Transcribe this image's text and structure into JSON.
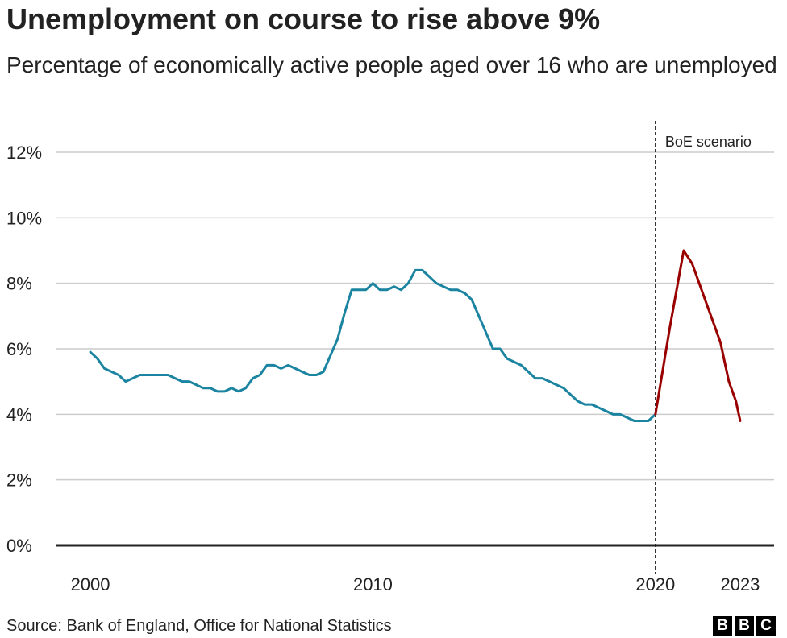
{
  "chart_data": {
    "type": "line",
    "title": "Unemployment on course to rise above 9%",
    "subtitle": "Percentage of economically active people aged over 16 who are unemployed",
    "source": "Source: Bank of England, Office for National Statistics",
    "logo": [
      "B",
      "B",
      "C"
    ],
    "xlim": [
      1998.8,
      2024.2
    ],
    "xticks": [
      2000,
      2010,
      2020,
      2023
    ],
    "ylim": [
      0,
      12
    ],
    "yticks": [
      {
        "value": 0,
        "label": "0%"
      },
      {
        "value": 2,
        "label": "2%"
      },
      {
        "value": 4,
        "label": "4%"
      },
      {
        "value": 6,
        "label": "6%"
      },
      {
        "value": 8,
        "label": "8%"
      },
      {
        "value": 10,
        "label": "10%"
      },
      {
        "value": 12,
        "label": "12%"
      }
    ],
    "grid": true,
    "annotation": {
      "text": "BoE scenario",
      "x": 2020
    },
    "series": [
      {
        "color": "#1b84a0",
        "x": [
          2000,
          2000.25,
          2000.5,
          2000.75,
          2001,
          2001.25,
          2001.5,
          2001.75,
          2002,
          2002.25,
          2002.5,
          2002.75,
          2003,
          2003.25,
          2003.5,
          2003.75,
          2004,
          2004.25,
          2004.5,
          2004.75,
          2005,
          2005.25,
          2005.5,
          2005.75,
          2006,
          2006.25,
          2006.5,
          2006.75,
          2007,
          2007.25,
          2007.5,
          2007.75,
          2008,
          2008.25,
          2008.5,
          2008.75,
          2009,
          2009.25,
          2009.5,
          2009.75,
          2010,
          2010.25,
          2010.5,
          2010.75,
          2011,
          2011.25,
          2011.5,
          2011.75,
          2012,
          2012.25,
          2012.5,
          2012.75,
          2013,
          2013.25,
          2013.5,
          2013.75,
          2014,
          2014.25,
          2014.5,
          2014.75,
          2015,
          2015.25,
          2015.5,
          2015.75,
          2016,
          2016.25,
          2016.5,
          2016.75,
          2017,
          2017.25,
          2017.5,
          2017.75,
          2018,
          2018.25,
          2018.5,
          2018.75,
          2019,
          2019.25,
          2019.5,
          2019.75,
          2020
        ],
        "values": [
          5.9,
          5.7,
          5.4,
          5.3,
          5.2,
          5.0,
          5.1,
          5.2,
          5.2,
          5.2,
          5.2,
          5.2,
          5.1,
          5.0,
          5.0,
          4.9,
          4.8,
          4.8,
          4.7,
          4.7,
          4.8,
          4.7,
          4.8,
          5.1,
          5.2,
          5.5,
          5.5,
          5.4,
          5.5,
          5.4,
          5.3,
          5.2,
          5.2,
          5.3,
          5.8,
          6.3,
          7.1,
          7.8,
          7.8,
          7.8,
          8.0,
          7.8,
          7.8,
          7.9,
          7.8,
          8.0,
          8.4,
          8.4,
          8.2,
          8.0,
          7.9,
          7.8,
          7.8,
          7.7,
          7.5,
          7.0,
          6.5,
          6.0,
          6.0,
          5.7,
          5.6,
          5.5,
          5.3,
          5.1,
          5.1,
          5.0,
          4.9,
          4.8,
          4.6,
          4.4,
          4.3,
          4.3,
          4.2,
          4.1,
          4.0,
          4.0,
          3.9,
          3.8,
          3.8,
          3.8,
          4.0
        ]
      },
      {
        "color": "#990000",
        "x": [
          2020,
          2020.5,
          2021,
          2021.3,
          2022.3,
          2022.6,
          2022.85,
          2023
        ],
        "values": [
          4.0,
          6.6,
          9.0,
          8.6,
          6.2,
          5.0,
          4.4,
          3.8
        ]
      }
    ]
  }
}
